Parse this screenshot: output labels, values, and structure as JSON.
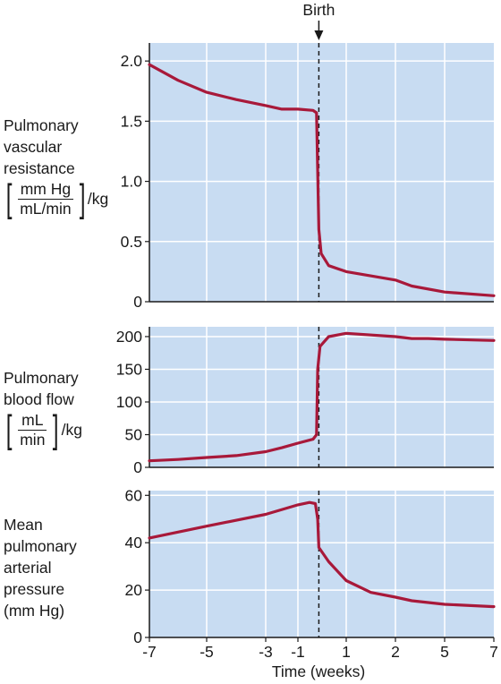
{
  "chart_data": [
    {
      "type": "line",
      "ylabel_lines": [
        "Pulmonary",
        "vascular",
        "resistance"
      ],
      "ylabel_unit": {
        "num": "mm Hg",
        "den": "mL/min",
        "suffix": "/kg"
      },
      "yticks": [
        "0",
        "0.5",
        "1.0",
        "1.5",
        "2.0"
      ],
      "ytick_values": [
        0,
        0.5,
        1.0,
        1.5,
        2.0
      ],
      "ylim": [
        0,
        2.15
      ],
      "series": [
        {
          "values": [
            [
              -7,
              1.97
            ],
            [
              -6,
              1.84
            ],
            [
              -5,
              1.74
            ],
            [
              -4,
              1.68
            ],
            [
              -3,
              1.63
            ],
            [
              -2,
              1.6
            ],
            [
              -1,
              1.6
            ],
            [
              -0.35,
              1.59
            ],
            [
              -0.2,
              1.57
            ],
            [
              -0.1,
              0.6
            ],
            [
              0,
              0.4
            ],
            [
              0.3,
              0.3
            ],
            [
              1,
              0.25
            ],
            [
              2,
              0.18
            ],
            [
              3,
              0.13
            ],
            [
              5,
              0.08
            ],
            [
              7,
              0.05
            ]
          ]
        }
      ]
    },
    {
      "type": "line",
      "ylabel_lines": [
        "Pulmonary",
        "blood flow"
      ],
      "ylabel_unit": {
        "num": "mL",
        "den": "min",
        "suffix": "/kg"
      },
      "yticks": [
        "0",
        "50",
        "100",
        "150",
        "200"
      ],
      "ytick_values": [
        0,
        50,
        100,
        150,
        200
      ],
      "ylim": [
        0,
        215
      ],
      "series": [
        {
          "values": [
            [
              -7,
              10
            ],
            [
              -6,
              12
            ],
            [
              -5,
              15
            ],
            [
              -4,
              18
            ],
            [
              -3,
              24
            ],
            [
              -2,
              30
            ],
            [
              -1,
              37
            ],
            [
              -0.35,
              43
            ],
            [
              -0.2,
              50
            ],
            [
              -0.15,
              150
            ],
            [
              -0.05,
              185
            ],
            [
              0.3,
              200
            ],
            [
              1,
              205
            ],
            [
              2,
              200
            ],
            [
              3,
              197
            ],
            [
              4,
              197
            ],
            [
              5,
              196
            ],
            [
              7,
              194
            ]
          ]
        }
      ]
    },
    {
      "type": "line",
      "ylabel_lines": [
        "Mean",
        "pulmonary",
        "arterial",
        "pressure",
        "(mm Hg)"
      ],
      "yticks": [
        "0",
        "20",
        "40",
        "60"
      ],
      "ytick_values": [
        0,
        20,
        40,
        60
      ],
      "ylim": [
        0,
        62
      ],
      "series": [
        {
          "values": [
            [
              -7,
              42
            ],
            [
              -5,
              47
            ],
            [
              -3,
              52
            ],
            [
              -1,
              56
            ],
            [
              -0.5,
              57
            ],
            [
              -0.25,
              56.5
            ],
            [
              -0.15,
              50
            ],
            [
              -0.1,
              38
            ],
            [
              0.3,
              32
            ],
            [
              1,
              24
            ],
            [
              1.5,
              19
            ],
            [
              2,
              17
            ],
            [
              3,
              15.5
            ],
            [
              5,
              14
            ],
            [
              7,
              13
            ]
          ]
        }
      ]
    }
  ],
  "xlabel": "Time (weeks)",
  "xticks": [
    "-7",
    "-5",
    "-3",
    "-1",
    "1",
    "2",
    "5",
    "7"
  ],
  "event_label": "Birth",
  "event_x": -0.1,
  "colors": {
    "panel_bg": "#c8dcf2",
    "grid": "#ffffff",
    "line": "#a8193a",
    "text": "#1a1a1a"
  }
}
